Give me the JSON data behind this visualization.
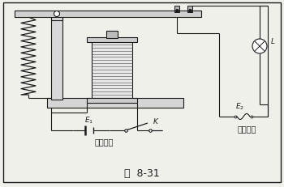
{
  "bg_color": "#f0f0eb",
  "line_color": "#1a1a1a",
  "title": "图  8-31",
  "label_control": "控制电路",
  "label_work": "工作电路",
  "label_E1": "$E_1$",
  "label_E2": "$E_2$",
  "label_K": "$K$",
  "label_L": "$L$",
  "figsize": [
    3.5,
    2.32
  ],
  "dpi": 100
}
